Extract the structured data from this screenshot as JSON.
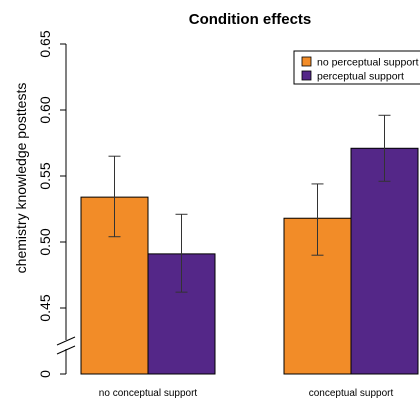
{
  "chart_data": {
    "type": "bar",
    "title": "Condition effects",
    "xlabel": "",
    "ylabel": "chemistry knowledge posttests",
    "categories": [
      "no conceptual support",
      "conceptual support"
    ],
    "series": [
      {
        "name": "no perceptual support",
        "color": "#F28C28",
        "values": [
          0.534,
          0.518
        ],
        "error_low": [
          0.504,
          0.49
        ],
        "error_high": [
          0.565,
          0.544
        ]
      },
      {
        "name": "perceptual support",
        "color": "#542788",
        "values": [
          0.491,
          0.571
        ],
        "error_low": [
          0.462,
          0.546
        ],
        "error_high": [
          0.521,
          0.596
        ]
      }
    ],
    "ylim": [
      0.4,
      0.65
    ],
    "axis_break": true,
    "yticks": [
      {
        "value": 0.65,
        "label": "0.65"
      },
      {
        "value": 0.6,
        "label": "0.60"
      },
      {
        "value": 0.55,
        "label": "0.55"
      },
      {
        "value": 0.5,
        "label": "0.50"
      },
      {
        "value": 0.45,
        "label": "0.45"
      },
      {
        "value": 0.4,
        "label": "0"
      }
    ],
    "grid": false,
    "legend_position": "top-right"
  }
}
